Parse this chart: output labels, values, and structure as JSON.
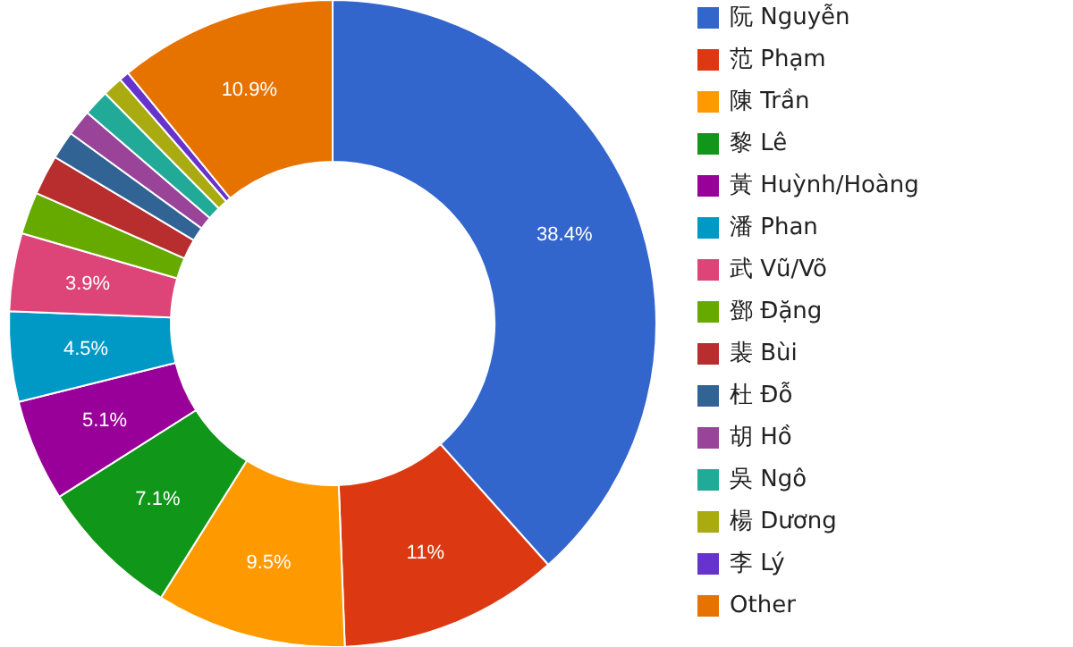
{
  "chart_data": {
    "type": "donut",
    "categories": [
      "阮 Nguyễn",
      "范 Phạm",
      "陳 Trần",
      "黎 Lê",
      "黃 Huỳnh/Hoàng",
      "潘 Phan",
      "武 Vũ/Võ",
      "鄧 Đặng",
      "裴 Bùi",
      "杜 Đỗ",
      "胡 Hồ",
      "吳 Ngô",
      "楊 Dương",
      "李 Lý",
      "Other"
    ],
    "values": [
      38.4,
      11,
      9.5,
      7.1,
      5.1,
      4.5,
      3.9,
      2.1,
      2,
      1.4,
      1.3,
      1.3,
      1,
      0.5,
      10.9
    ],
    "colors": [
      "#3366cc",
      "#dc3912",
      "#ff9900",
      "#109618",
      "#990099",
      "#0099c6",
      "#dd4477",
      "#66aa00",
      "#b82e2e",
      "#316395",
      "#994499",
      "#22aa99",
      "#aaaa11",
      "#6633cc",
      "#e67300"
    ],
    "value_labels": [
      "38.4%",
      "11%",
      "9.5%",
      "7.1%",
      "5.1%",
      "4.5%",
      "3.9%",
      null,
      null,
      null,
      null,
      null,
      null,
      null,
      "10.9%"
    ],
    "legend": "right"
  }
}
